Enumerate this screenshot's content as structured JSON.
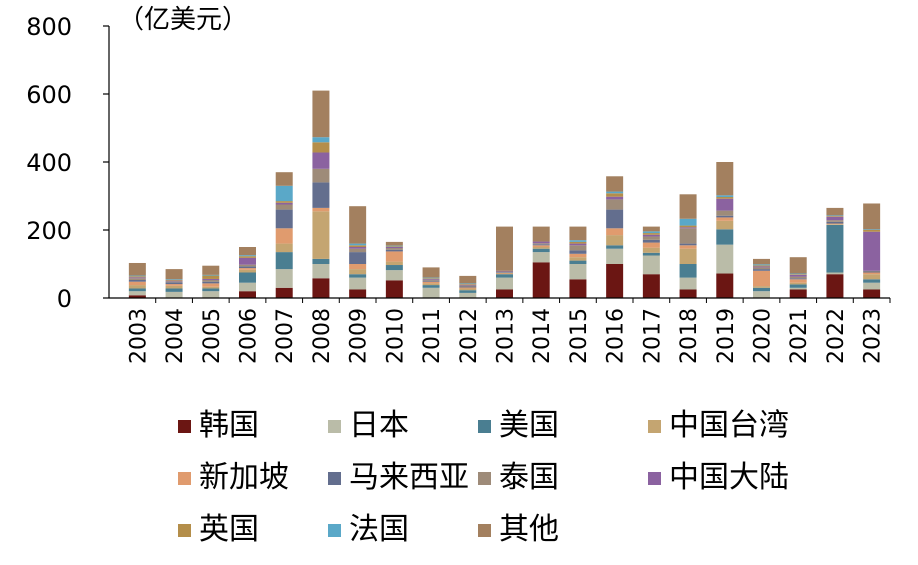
{
  "chart_data": {
    "type": "bar",
    "stacked": true,
    "unit_label": "（亿美元）",
    "categories": [
      "2003",
      "2004",
      "2005",
      "2006",
      "2007",
      "2008",
      "2009",
      "2010",
      "2011",
      "2012",
      "2013",
      "2014",
      "2015",
      "2016",
      "2017",
      "2018",
      "2019",
      "2020",
      "2021",
      "2022",
      "2023"
    ],
    "ylim": [
      0,
      800
    ],
    "yticks": [
      0,
      200,
      400,
      600,
      800
    ],
    "grid": false,
    "legend_position": "bottom",
    "series": [
      {
        "name": "韩国",
        "color": "#6B1613",
        "values": [
          8,
          0,
          0,
          20,
          30,
          58,
          25,
          52,
          0,
          0,
          25,
          105,
          55,
          100,
          70,
          25,
          72,
          0,
          25,
          70,
          25
        ]
      },
      {
        "name": "日本",
        "color": "#BABCA8",
        "values": [
          12,
          18,
          20,
          25,
          55,
          42,
          35,
          30,
          30,
          15,
          35,
          30,
          45,
          45,
          55,
          35,
          85,
          20,
          5,
          5,
          20
        ]
      },
      {
        "name": "美国",
        "color": "#4A7E91",
        "values": [
          8,
          10,
          8,
          30,
          50,
          15,
          10,
          15,
          8,
          8,
          10,
          10,
          10,
          10,
          8,
          40,
          45,
          10,
          10,
          140,
          10
        ]
      },
      {
        "name": "中国台湾",
        "color": "#C4A571",
        "values": [
          10,
          8,
          5,
          8,
          25,
          140,
          15,
          10,
          5,
          5,
          2,
          5,
          10,
          30,
          15,
          45,
          25,
          5,
          5,
          2,
          15
        ]
      },
      {
        "name": "新加坡",
        "color": "#E09B6E",
        "values": [
          10,
          5,
          10,
          5,
          45,
          10,
          15,
          30,
          5,
          3,
          2,
          5,
          10,
          20,
          15,
          10,
          10,
          45,
          10,
          2,
          5
        ]
      },
      {
        "name": "马来西亚",
        "color": "#636E8E",
        "values": [
          5,
          5,
          5,
          5,
          55,
          75,
          35,
          5,
          3,
          3,
          2,
          3,
          10,
          55,
          8,
          5,
          5,
          5,
          3,
          5,
          3
        ]
      },
      {
        "name": "泰国",
        "color": "#9E8B79",
        "values": [
          5,
          3,
          5,
          5,
          15,
          40,
          10,
          5,
          3,
          3,
          2,
          3,
          15,
          30,
          10,
          45,
          15,
          5,
          5,
          5,
          2
        ]
      },
      {
        "name": "中国大陆",
        "color": "#8B62A0",
        "values": [
          3,
          2,
          3,
          20,
          5,
          48,
          5,
          3,
          2,
          2,
          2,
          5,
          5,
          8,
          5,
          3,
          35,
          3,
          5,
          10,
          115
        ]
      },
      {
        "name": "英国",
        "color": "#B48E4A",
        "values": [
          3,
          2,
          10,
          5,
          5,
          30,
          5,
          2,
          2,
          2,
          0,
          0,
          5,
          10,
          5,
          5,
          5,
          3,
          2,
          2,
          5
        ]
      },
      {
        "name": "法国",
        "color": "#5AA8C8",
        "values": [
          2,
          2,
          2,
          3,
          45,
          15,
          5,
          2,
          2,
          2,
          0,
          0,
          5,
          5,
          5,
          20,
          5,
          3,
          2,
          2,
          2
        ]
      },
      {
        "name": "其他",
        "color": "#A3805F",
        "values": [
          37,
          30,
          27,
          24,
          40,
          137,
          110,
          11,
          30,
          22,
          130,
          44,
          40,
          45,
          14,
          72,
          98,
          16,
          48,
          22,
          76
        ]
      }
    ]
  }
}
